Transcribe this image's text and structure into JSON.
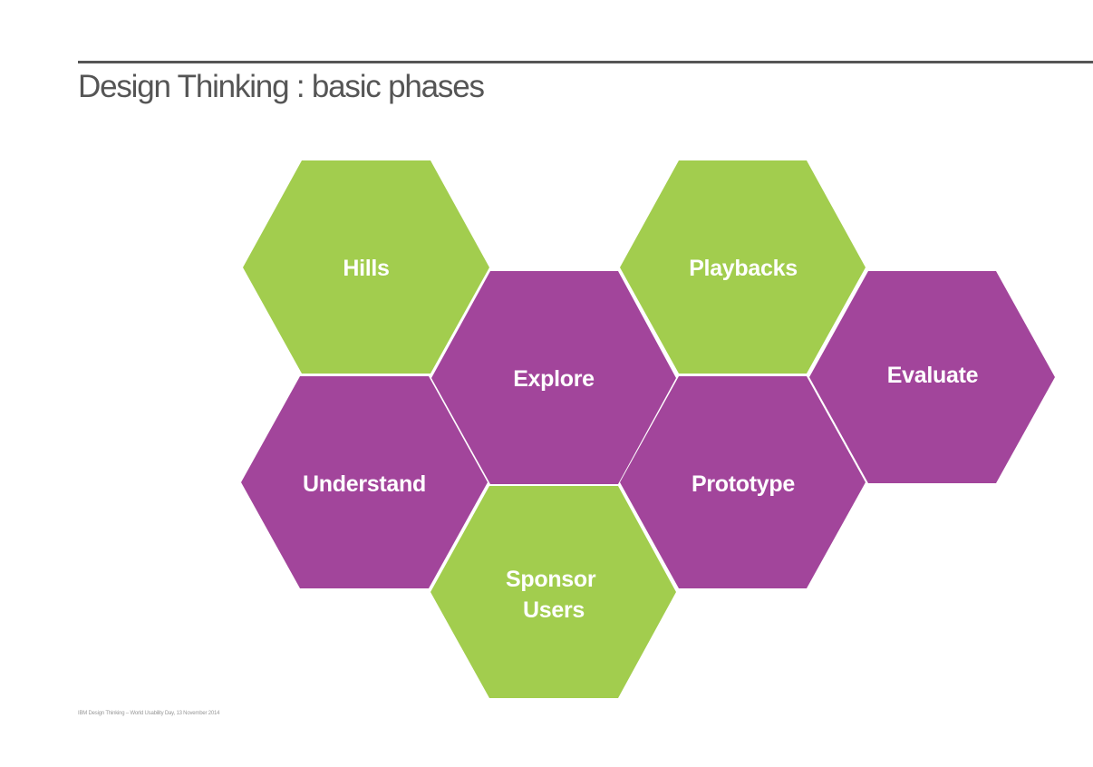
{
  "slide": {
    "title": "Design Thinking : basic phases",
    "footer": "IBM Design Thinking – World Usability Day, 13 November 2014"
  },
  "colors": {
    "green": "#a2cd4e",
    "purple": "#a2459b",
    "title_text": "#555555",
    "rule": "#555555",
    "hex_text": "#ffffff"
  },
  "phases": {
    "hills": {
      "lines": [
        "Hills"
      ],
      "color": "green"
    },
    "explore": {
      "lines": [
        "Explore"
      ],
      "color": "purple"
    },
    "understand": {
      "lines": [
        "Understand"
      ],
      "color": "purple"
    },
    "sponsor_users": {
      "lines": [
        "Sponsor",
        "Users"
      ],
      "color": "green"
    },
    "playbacks": {
      "lines": [
        "Playbacks"
      ],
      "color": "green"
    },
    "prototype": {
      "lines": [
        "Prototype"
      ],
      "color": "purple"
    },
    "evaluate": {
      "lines": [
        "Evaluate"
      ],
      "color": "purple"
    }
  }
}
